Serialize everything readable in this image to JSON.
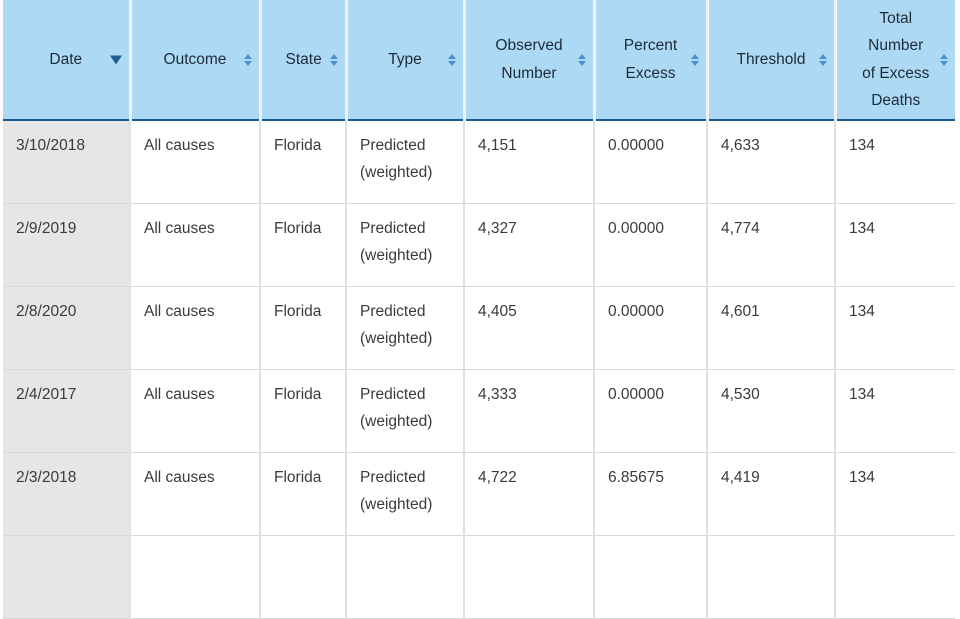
{
  "table": {
    "columns": [
      {
        "key": "date",
        "label": "Date",
        "sort": "desc"
      },
      {
        "key": "outcome",
        "label": "Outcome",
        "sort": "both"
      },
      {
        "key": "state",
        "label": "State",
        "sort": "both"
      },
      {
        "key": "type",
        "label": "Type",
        "sort": "both"
      },
      {
        "key": "observed_number",
        "label": "Observed Number",
        "sort": "both"
      },
      {
        "key": "percent_excess",
        "label": "Percent Excess",
        "sort": "both"
      },
      {
        "key": "threshold",
        "label": "Threshold",
        "sort": "both"
      },
      {
        "key": "total_excess_deaths",
        "label": "Total Number of Excess Deaths",
        "sort": "both"
      }
    ],
    "rows": [
      {
        "date": "3/10/2018",
        "outcome": "All causes",
        "state": "Florida",
        "type": "Predicted (weighted)",
        "observed_number": "4,151",
        "percent_excess": "0.00000",
        "threshold": "4,633",
        "total_excess_deaths": "134"
      },
      {
        "date": "2/9/2019",
        "outcome": "All causes",
        "state": "Florida",
        "type": "Predicted (weighted)",
        "observed_number": "4,327",
        "percent_excess": "0.00000",
        "threshold": "4,774",
        "total_excess_deaths": "134"
      },
      {
        "date": "2/8/2020",
        "outcome": "All causes",
        "state": "Florida",
        "type": "Predicted (weighted)",
        "observed_number": "4,405",
        "percent_excess": "0.00000",
        "threshold": "4,601",
        "total_excess_deaths": "134"
      },
      {
        "date": "2/4/2017",
        "outcome": "All causes",
        "state": "Florida",
        "type": "Predicted (weighted)",
        "observed_number": "4,333",
        "percent_excess": "0.00000",
        "threshold": "4,530",
        "total_excess_deaths": "134"
      },
      {
        "date": "2/3/2018",
        "outcome": "All causes",
        "state": "Florida",
        "type": "Predicted (weighted)",
        "observed_number": "4,722",
        "percent_excess": "6.85675",
        "threshold": "4,419",
        "total_excess_deaths": "134"
      }
    ]
  },
  "colors": {
    "header_bg": "#add9f4",
    "header_gap": "#edf1f4",
    "header_border": "#1b5a8d",
    "header_text": "#1c2b39",
    "sort_active": "#205d94",
    "sort_inactive": "#4a90d2",
    "date_col_bg": "#e6e6e6",
    "row_border": "#d8d8d8",
    "col_border": "#e0e0e0",
    "text": "#3a3a3a"
  }
}
